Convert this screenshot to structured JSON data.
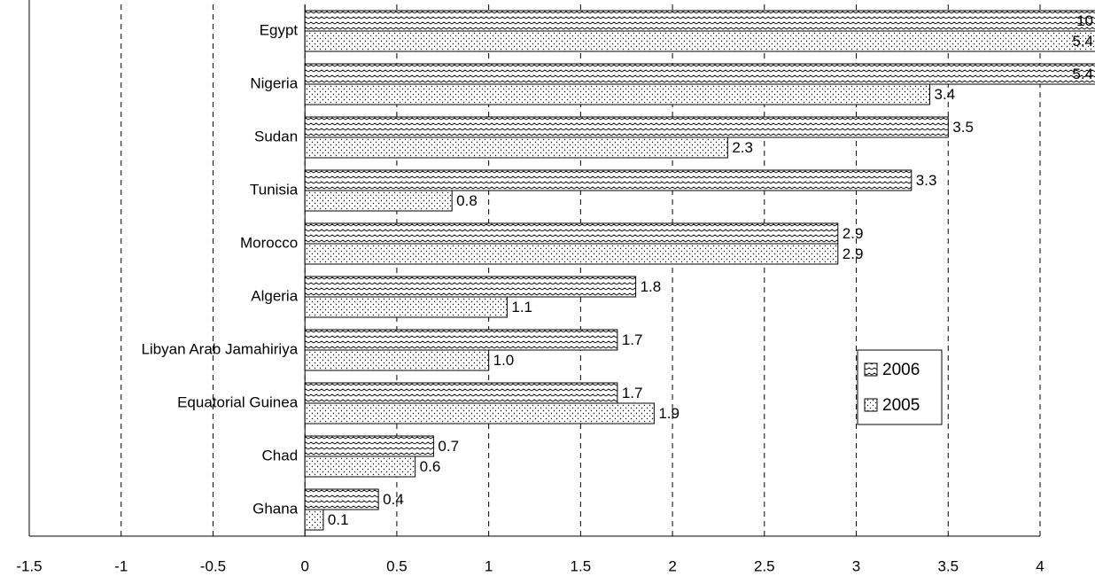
{
  "chart_data": {
    "type": "hbar",
    "categories": [
      "Egypt",
      "Nigeria",
      "Sudan",
      "Tunisia",
      "Morocco",
      "Algeria",
      "Libyan Arab Jamahiriya",
      "Equatorial Guinea",
      "Chad",
      "Ghana"
    ],
    "series": [
      {
        "name": "2006",
        "color": "#000000",
        "pattern": "wave",
        "values": [
          10,
          5.4,
          3.5,
          3.3,
          2.9,
          1.8,
          1.7,
          1.7,
          0.7,
          0.4
        ],
        "value_labels": [
          "10",
          "5.4",
          "3.5",
          "3.3",
          "2.9",
          "1.8",
          "1.7",
          "1.7",
          "0.7",
          "0.4"
        ]
      },
      {
        "name": "2005",
        "color": "#000000",
        "pattern": "dots",
        "values": [
          5.4,
          3.4,
          2.3,
          0.8,
          2.9,
          1.1,
          1.0,
          1.9,
          0.6,
          0.1
        ],
        "value_labels": [
          "5.4",
          "3.4",
          "2.3",
          "0.8",
          "2.9",
          "1.1",
          "1.0",
          "1.9",
          "0.6",
          "0.1"
        ]
      }
    ],
    "xlim": [
      -1.5,
      4
    ],
    "xticks": [
      -1.5,
      -1,
      -0.5,
      0,
      0.5,
      1,
      1.5,
      2,
      2.5,
      3,
      3.5,
      4
    ],
    "grid": true
  }
}
